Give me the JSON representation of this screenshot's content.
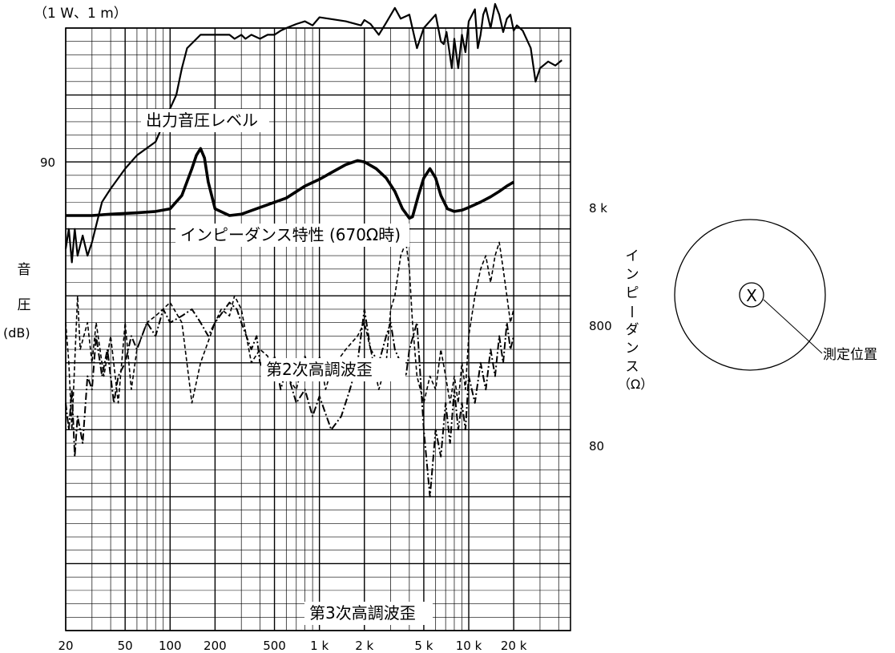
{
  "chart_data": {
    "type": "line",
    "condition": "（1 W、1 m）",
    "x_scale": "log",
    "xlim": [
      20,
      48000
    ],
    "x_ticks": [
      {
        "value": 20,
        "label": "20"
      },
      {
        "value": 50,
        "label": "50"
      },
      {
        "value": 100,
        "label": "100"
      },
      {
        "value": 200,
        "label": "200"
      },
      {
        "value": 500,
        "label": "500"
      },
      {
        "value": 1000,
        "label": "1 k"
      },
      {
        "value": 2000,
        "label": "2 k"
      },
      {
        "value": 5000,
        "label": "5 k"
      },
      {
        "value": 10000,
        "label": "10 k"
      },
      {
        "value": 20000,
        "label": "20 k"
      }
    ],
    "y_left": {
      "label_chars": [
        "音",
        "圧"
      ],
      "unit": "(dB)",
      "ylim": [
        55,
        100
      ],
      "ticks": [
        {
          "value": 90,
          "label": "90"
        }
      ]
    },
    "y_right": {
      "label": "インピーダンス",
      "unit": "（Ω）",
      "ticks": [
        {
          "value": 8000,
          "label": "8 k"
        },
        {
          "value": 800,
          "label": "800"
        },
        {
          "value": 80,
          "label": "80"
        }
      ]
    },
    "grid": true,
    "series": [
      {
        "name": "出力音圧レベル",
        "axis": "left",
        "style": "solid",
        "points": [
          [
            20,
            83.5
          ],
          [
            21,
            85
          ],
          [
            22,
            82.5
          ],
          [
            23,
            85
          ],
          [
            24,
            83
          ],
          [
            26,
            84.5
          ],
          [
            28,
            83
          ],
          [
            30,
            84
          ],
          [
            35,
            87
          ],
          [
            40,
            88
          ],
          [
            50,
            89.5
          ],
          [
            60,
            90.5
          ],
          [
            80,
            91.5
          ],
          [
            100,
            94
          ],
          [
            110,
            95
          ],
          [
            120,
            97
          ],
          [
            130,
            98.5
          ],
          [
            160,
            99.5
          ],
          [
            200,
            99.5
          ],
          [
            250,
            99.5
          ],
          [
            270,
            99.2
          ],
          [
            300,
            99.5
          ],
          [
            320,
            99.2
          ],
          [
            350,
            99.5
          ],
          [
            400,
            99.2
          ],
          [
            450,
            99.5
          ],
          [
            500,
            99.5
          ],
          [
            550,
            99.8
          ],
          [
            600,
            100
          ],
          [
            700,
            100.3
          ],
          [
            800,
            100.5
          ],
          [
            900,
            100.2
          ],
          [
            1000,
            100.8
          ],
          [
            1500,
            100.5
          ],
          [
            1900,
            100.2
          ],
          [
            2000,
            100.6
          ],
          [
            2200,
            100.3
          ],
          [
            2500,
            99.5
          ],
          [
            2800,
            100.4
          ],
          [
            3200,
            101.5
          ],
          [
            3500,
            100.7
          ],
          [
            4000,
            101
          ],
          [
            4500,
            98.5
          ],
          [
            5000,
            100
          ],
          [
            6000,
            101
          ],
          [
            6500,
            99
          ],
          [
            6800,
            98.8
          ],
          [
            7100,
            99.7
          ],
          [
            7700,
            97
          ],
          [
            8000,
            99.2
          ],
          [
            8500,
            97
          ],
          [
            9000,
            99.5
          ],
          [
            9500,
            98.2
          ],
          [
            10000,
            100.5
          ],
          [
            11000,
            101.4
          ],
          [
            11500,
            98.5
          ],
          [
            12000,
            99.5
          ],
          [
            12500,
            101
          ],
          [
            13000,
            101.5
          ],
          [
            14000,
            100
          ],
          [
            15000,
            101.8
          ],
          [
            16000,
            101
          ],
          [
            17000,
            99.7
          ],
          [
            18000,
            100.7
          ],
          [
            19000,
            101
          ],
          [
            20000,
            99.8
          ],
          [
            21000,
            100.2
          ],
          [
            23000,
            99.8
          ],
          [
            26000,
            98.5
          ],
          [
            28000,
            96
          ],
          [
            30000,
            97
          ],
          [
            34000,
            97.5
          ],
          [
            38000,
            97.2
          ],
          [
            42000,
            97.6
          ]
        ]
      },
      {
        "name": "インピーダンス特性 (670Ω時)",
        "axis": "right",
        "style": "thick",
        "points": [
          [
            20,
            86
          ],
          [
            30,
            86
          ],
          [
            40,
            86.1
          ],
          [
            60,
            86.2
          ],
          [
            80,
            86.3
          ],
          [
            100,
            86.5
          ],
          [
            120,
            87.5
          ],
          [
            140,
            89.5
          ],
          [
            150,
            90.5
          ],
          [
            160,
            91
          ],
          [
            170,
            90.3
          ],
          [
            180,
            88.5
          ],
          [
            200,
            86.5
          ],
          [
            250,
            86
          ],
          [
            300,
            86.1
          ],
          [
            400,
            86.6
          ],
          [
            600,
            87.3
          ],
          [
            800,
            88.2
          ],
          [
            1000,
            88.7
          ],
          [
            1200,
            89.2
          ],
          [
            1500,
            89.8
          ],
          [
            1800,
            90.1
          ],
          [
            2000,
            90
          ],
          [
            2400,
            89.5
          ],
          [
            2800,
            88.8
          ],
          [
            3200,
            87.8
          ],
          [
            3600,
            86.5
          ],
          [
            4000,
            85.8
          ],
          [
            4200,
            85.9
          ],
          [
            4600,
            87.5
          ],
          [
            5000,
            88.8
          ],
          [
            5500,
            89.5
          ],
          [
            6000,
            88.8
          ],
          [
            6500,
            87.5
          ],
          [
            7200,
            86.5
          ],
          [
            8000,
            86.3
          ],
          [
            9000,
            86.4
          ],
          [
            10000,
            86.6
          ],
          [
            12000,
            87
          ],
          [
            14000,
            87.4
          ],
          [
            16000,
            87.8
          ],
          [
            18000,
            88.2
          ],
          [
            20000,
            88.5
          ]
        ]
      },
      {
        "name": "第2次高調波歪",
        "axis": "left",
        "style": "dashed",
        "points": [
          [
            20,
            78
          ],
          [
            21,
            75
          ],
          [
            22,
            70
          ],
          [
            24,
            80
          ],
          [
            25,
            76
          ],
          [
            28,
            78
          ],
          [
            30,
            75
          ],
          [
            32,
            78
          ],
          [
            36,
            74
          ],
          [
            40,
            77
          ],
          [
            45,
            72
          ],
          [
            50,
            78
          ],
          [
            55,
            73
          ],
          [
            60,
            76
          ],
          [
            70,
            78
          ],
          [
            80,
            78.5
          ],
          [
            100,
            79.5
          ],
          [
            120,
            78
          ],
          [
            140,
            72
          ],
          [
            160,
            75
          ],
          [
            200,
            78
          ],
          [
            220,
            79
          ],
          [
            250,
            78.5
          ],
          [
            270,
            80
          ],
          [
            300,
            79
          ],
          [
            350,
            75
          ],
          [
            400,
            76
          ],
          [
            450,
            75.5
          ],
          [
            500,
            74
          ],
          [
            550,
            75
          ],
          [
            600,
            74
          ],
          [
            700,
            73
          ],
          [
            800,
            75.5
          ],
          [
            900,
            74
          ],
          [
            1000,
            75.5
          ],
          [
            1100,
            73
          ],
          [
            1200,
            74.5
          ],
          [
            1500,
            76
          ],
          [
            1800,
            77
          ],
          [
            2000,
            78
          ],
          [
            2200,
            76
          ],
          [
            2500,
            73
          ],
          [
            2800,
            75
          ],
          [
            3000,
            79
          ],
          [
            3200,
            80
          ],
          [
            3500,
            83
          ],
          [
            3800,
            84
          ],
          [
            4000,
            82
          ],
          [
            4200,
            78
          ],
          [
            4500,
            74
          ],
          [
            5000,
            72
          ],
          [
            5500,
            74
          ],
          [
            6000,
            73
          ],
          [
            6500,
            76
          ],
          [
            7000,
            74
          ],
          [
            7500,
            72
          ],
          [
            8000,
            74
          ],
          [
            8500,
            72
          ],
          [
            9000,
            75
          ],
          [
            9500,
            73
          ],
          [
            10000,
            77
          ],
          [
            11000,
            80
          ],
          [
            12000,
            82
          ],
          [
            13000,
            83
          ],
          [
            14000,
            81
          ],
          [
            15000,
            83
          ],
          [
            16000,
            84
          ],
          [
            17000,
            82
          ],
          [
            18000,
            80
          ],
          [
            19000,
            78
          ],
          [
            20000,
            79
          ]
        ]
      },
      {
        "name": "第3次高調波歪",
        "axis": "left",
        "style": "dash-dot",
        "points": [
          [
            20,
            72
          ],
          [
            21,
            70
          ],
          [
            22,
            73
          ],
          [
            23,
            68
          ],
          [
            24,
            71
          ],
          [
            26,
            69
          ],
          [
            28,
            74
          ],
          [
            30,
            73
          ],
          [
            32,
            77
          ],
          [
            35,
            74
          ],
          [
            38,
            76
          ],
          [
            42,
            72
          ],
          [
            45,
            74
          ],
          [
            50,
            75
          ],
          [
            55,
            77
          ],
          [
            60,
            76
          ],
          [
            70,
            78
          ],
          [
            80,
            77
          ],
          [
            90,
            79
          ],
          [
            100,
            78
          ],
          [
            120,
            78.5
          ],
          [
            140,
            79
          ],
          [
            160,
            78
          ],
          [
            180,
            77
          ],
          [
            200,
            78
          ],
          [
            250,
            79.5
          ],
          [
            280,
            79
          ],
          [
            300,
            78
          ],
          [
            350,
            76
          ],
          [
            380,
            77
          ],
          [
            400,
            75
          ],
          [
            450,
            74
          ],
          [
            500,
            75.5
          ],
          [
            550,
            73
          ],
          [
            600,
            74.5
          ],
          [
            700,
            72
          ],
          [
            800,
            73
          ],
          [
            900,
            71
          ],
          [
            1000,
            72.5
          ],
          [
            1200,
            70
          ],
          [
            1400,
            71
          ],
          [
            1600,
            73
          ],
          [
            1800,
            75
          ],
          [
            2000,
            79
          ],
          [
            2200,
            76
          ],
          [
            2500,
            75
          ],
          [
            2800,
            77
          ],
          [
            3000,
            78
          ],
          [
            3200,
            76
          ],
          [
            3500,
            75
          ],
          [
            3800,
            74
          ],
          [
            4000,
            76
          ],
          [
            4500,
            78
          ],
          [
            5000,
            70
          ],
          [
            5500,
            65
          ],
          [
            6000,
            70
          ],
          [
            6500,
            68
          ],
          [
            7000,
            72
          ],
          [
            7500,
            69
          ],
          [
            8000,
            73
          ],
          [
            8500,
            70
          ],
          [
            9000,
            72
          ],
          [
            9500,
            70
          ],
          [
            10000,
            74
          ],
          [
            11000,
            72
          ],
          [
            12000,
            75
          ],
          [
            13000,
            73
          ],
          [
            14000,
            76
          ],
          [
            15000,
            74
          ],
          [
            16000,
            77
          ],
          [
            17000,
            75
          ],
          [
            18000,
            78
          ],
          [
            19000,
            76
          ],
          [
            20000,
            77
          ]
        ]
      }
    ],
    "annotations": [
      {
        "text": "出力音圧レベル",
        "target": "series-0"
      },
      {
        "text": "インピーダンス特性 (670Ω時)",
        "target": "series-1"
      },
      {
        "text": "第2次高調波歪",
        "target": "series-2"
      },
      {
        "text": "第3次高調波歪",
        "target": "series-3"
      }
    ]
  },
  "inset": {
    "marker_symbol": "X",
    "label": "測定位置"
  }
}
